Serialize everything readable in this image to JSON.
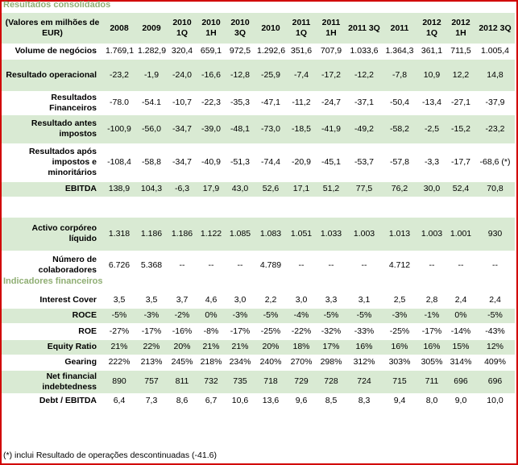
{
  "section1": "Resultados consolidados",
  "section2": "Indicadores financeiros",
  "footnote": "(*) inclui Resultado de operações descontinuadas (-41.6)",
  "header": {
    "label": "(Valores em milhões de EUR)",
    "cols": [
      "2008",
      "2009",
      "2010 1Q",
      "2010 1H",
      "2010 3Q",
      "2010",
      "2011 1Q",
      "2011 1H",
      "2011 3Q",
      "2011",
      "2012 1Q",
      "2012 1H",
      "2012 3Q"
    ]
  },
  "rows1": [
    {
      "label": "Volume de negócios",
      "vals": [
        "1.769,1",
        "1.282,9",
        "320,4",
        "659,1",
        "972,5",
        "1.292,6",
        "351,6",
        "707,9",
        "1.033,6",
        "1.364,3",
        "361,1",
        "711,5",
        "1.005,4"
      ]
    },
    {
      "label": "Resultado operacional",
      "vals": [
        "-23,2",
        "-1,9",
        "-24,0",
        "-16,6",
        "-12,8",
        "-25,9",
        "-7,4",
        "-17,2",
        "-12,2",
        "-7,8",
        "10,9",
        "12,2",
        "14,8"
      ]
    },
    {
      "label": "Resultados Financeiros",
      "vals": [
        "-78.0",
        "-54.1",
        "-10,7",
        "-22,3",
        "-35,3",
        "-47,1",
        "-11,2",
        "-24,7",
        "-37,1",
        "-50,4",
        "-13,4",
        "-27,1",
        "-37,9"
      ]
    },
    {
      "label": "Resultado antes impostos",
      "vals": [
        "-100,9",
        "-56,0",
        "-34,7",
        "-39,0",
        "-48,1",
        "-73,0",
        "-18,5",
        "-41,9",
        "-49,2",
        "-58,2",
        "-2,5",
        "-15,2",
        "-23,2"
      ]
    },
    {
      "label": "Resultados após impostos e minoritários",
      "vals": [
        "-108,4",
        "-58,8",
        "-34,7",
        "-40,9",
        "-51,3",
        "-74,4",
        "-20,9",
        "-45,1",
        "-53,7",
        "-57,8",
        "-3,3",
        "-17,7",
        "-68,6 (*)"
      ]
    },
    {
      "label": "EBITDA",
      "vals": [
        "138,9",
        "104,3",
        "-6,3",
        "17,9",
        "43,0",
        "52,6",
        "17,1",
        "51,2",
        "77,5",
        "76,2",
        "30,0",
        "52,4",
        "70,8"
      ]
    },
    {
      "label": "Activo corpóreo líquido",
      "vals": [
        "1.318",
        "1.186",
        "1.186",
        "1.122",
        "1.085",
        "1.083",
        "1.051",
        "1.033",
        "1.003",
        "1.013",
        "1.003",
        "1.001",
        "930"
      ]
    },
    {
      "label": "Número de colaboradores",
      "vals": [
        "6.726",
        "5.368",
        "--",
        "--",
        "--",
        "4.789",
        "--",
        "--",
        "--",
        "4.712",
        "--",
        "--",
        "--"
      ]
    }
  ],
  "rows2": [
    {
      "label": "Interest Cover",
      "vals": [
        "3,5",
        "3,5",
        "3,7",
        "4,6",
        "3,0",
        "2,2",
        "3,0",
        "3,3",
        "3,1",
        "2,5",
        "2,8",
        "2,4",
        "2,4"
      ]
    },
    {
      "label": "ROCE",
      "vals": [
        "-5%",
        "-3%",
        "-2%",
        "0%",
        "-3%",
        "-5%",
        "-4%",
        "-5%",
        "-5%",
        "-3%",
        "-1%",
        "0%",
        "-5%"
      ]
    },
    {
      "label": "ROE",
      "vals": [
        "-27%",
        "-17%",
        "-16%",
        "-8%",
        "-17%",
        "-25%",
        "-22%",
        "-32%",
        "-33%",
        "-25%",
        "-17%",
        "-14%",
        "-43%"
      ]
    },
    {
      "label": "Equity Ratio",
      "vals": [
        "21%",
        "22%",
        "20%",
        "21%",
        "21%",
        "20%",
        "18%",
        "17%",
        "16%",
        "16%",
        "16%",
        "15%",
        "12%"
      ]
    },
    {
      "label": "Gearing",
      "vals": [
        "222%",
        "213%",
        "245%",
        "218%",
        "234%",
        "240%",
        "270%",
        "298%",
        "312%",
        "303%",
        "305%",
        "314%",
        "409%"
      ]
    },
    {
      "label": "Net financial indebtedness",
      "vals": [
        "890",
        "757",
        "811",
        "732",
        "735",
        "718",
        "729",
        "728",
        "724",
        "715",
        "711",
        "696",
        "696"
      ]
    },
    {
      "label": "Debt / EBITDA",
      "vals": [
        "6,4",
        "7,3",
        "8,6",
        "6,7",
        "10,6",
        "13,6",
        "9,6",
        "8,5",
        "8,3",
        "9,4",
        "8,0",
        "9,0",
        "10,0"
      ]
    }
  ]
}
